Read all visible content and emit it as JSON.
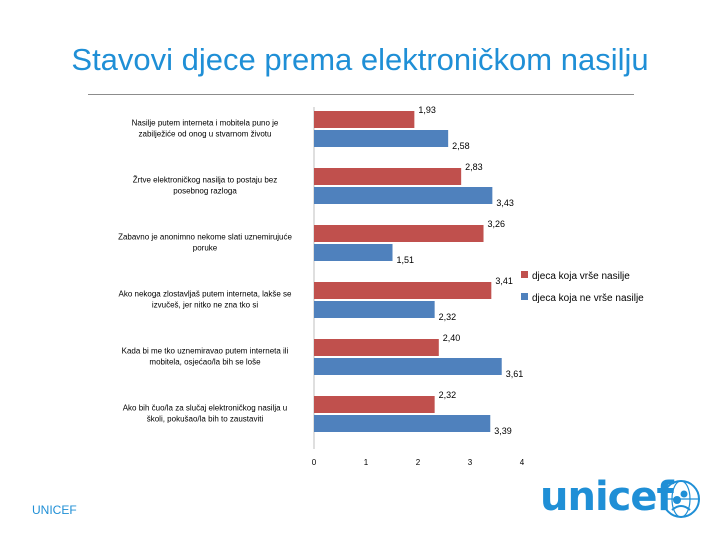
{
  "slide": {
    "title": "Stavovi djece prema elektroničkom nasilju",
    "footer": "UNICEF",
    "logo_text": "unicef",
    "accent_color": "#1f8fd6"
  },
  "chart_data": {
    "type": "bar",
    "orientation": "horizontal",
    "categories": [
      "Nasilje putem interneta i mobitela puno je zabilježiće od onog u stvarnom životu",
      "Žrtve elektroničkog nasilja to postaju bez posebnog razloga",
      "Zabavno je anonimno nekome slati uznemirujuće poruke",
      "Ako nekoga zlostavljaš putem interneta, lakše se izvučeš, jer nitko ne zna tko si",
      "Kada bi me tko uznemiravao putem interneta ili mobitela, osjećao/la bih se loše",
      "Ako bih čuo/la za slučaj elektroničkog nasilja u školi, pokušao/la bih to zaustaviti"
    ],
    "series": [
      {
        "name": "djeca koja vrše nasilje",
        "color": "#c0504d",
        "values": [
          1.93,
          2.83,
          3.26,
          3.41,
          2.4,
          2.32
        ],
        "labels": [
          "1,93",
          "2,83",
          "3,26",
          "3,41",
          "2,40",
          "2,32"
        ]
      },
      {
        "name": "djeca koja ne vrše nasilje",
        "color": "#4f81bd",
        "values": [
          2.58,
          3.43,
          1.51,
          2.32,
          3.61,
          3.39
        ],
        "labels": [
          "2,58",
          "3,43",
          "1,51",
          "2,32",
          "3,61",
          "3,39"
        ]
      }
    ],
    "xlim": [
      0,
      4
    ],
    "xticks": [
      "0",
      "1",
      "2",
      "3",
      "4"
    ],
    "grid": false,
    "legend_position": "right"
  }
}
